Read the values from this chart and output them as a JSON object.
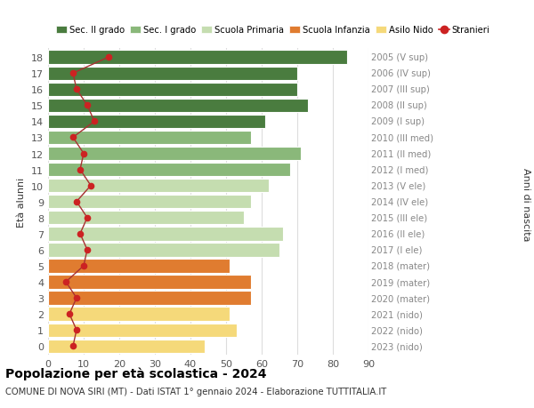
{
  "ages": [
    18,
    17,
    16,
    15,
    14,
    13,
    12,
    11,
    10,
    9,
    8,
    7,
    6,
    5,
    4,
    3,
    2,
    1,
    0
  ],
  "bar_values": [
    84,
    70,
    70,
    73,
    61,
    57,
    71,
    68,
    62,
    57,
    55,
    66,
    65,
    51,
    57,
    57,
    51,
    53,
    44
  ],
  "bar_colors": [
    "#4a7c3f",
    "#4a7c3f",
    "#4a7c3f",
    "#4a7c3f",
    "#4a7c3f",
    "#8ab87a",
    "#8ab87a",
    "#8ab87a",
    "#c5ddb0",
    "#c5ddb0",
    "#c5ddb0",
    "#c5ddb0",
    "#c5ddb0",
    "#e07c30",
    "#e07c30",
    "#e07c30",
    "#f5d97a",
    "#f5d97a",
    "#f5d97a"
  ],
  "right_labels": [
    "2005 (V sup)",
    "2006 (IV sup)",
    "2007 (III sup)",
    "2008 (II sup)",
    "2009 (I sup)",
    "2010 (III med)",
    "2011 (II med)",
    "2012 (I med)",
    "2013 (V ele)",
    "2014 (IV ele)",
    "2015 (III ele)",
    "2016 (II ele)",
    "2017 (I ele)",
    "2018 (mater)",
    "2019 (mater)",
    "2020 (mater)",
    "2021 (nido)",
    "2022 (nido)",
    "2023 (nido)"
  ],
  "stranieri_values": [
    17,
    7,
    8,
    11,
    13,
    7,
    10,
    9,
    12,
    8,
    11,
    9,
    11,
    10,
    5,
    8,
    6,
    8,
    7
  ],
  "legend_labels": [
    "Sec. II grado",
    "Sec. I grado",
    "Scuola Primaria",
    "Scuola Infanzia",
    "Asilo Nido",
    "Stranieri"
  ],
  "legend_colors": [
    "#4a7c3f",
    "#8ab87a",
    "#c5ddb0",
    "#e07c30",
    "#f5d97a",
    "#cc2222"
  ],
  "title_bold": "Popolazione per età scolastica - 2024",
  "subtitle": "COMUNE DI NOVA SIRI (MT) - Dati ISTAT 1° gennaio 2024 - Elaborazione TUTTITALIA.IT",
  "ylabel_left": "Età alunni",
  "ylabel_right": "Anni di nascita",
  "xlim": [
    0,
    90
  ],
  "background_color": "#ffffff",
  "grid_color": "#dddddd",
  "right_label_color": "#888888",
  "tick_color": "#555555"
}
